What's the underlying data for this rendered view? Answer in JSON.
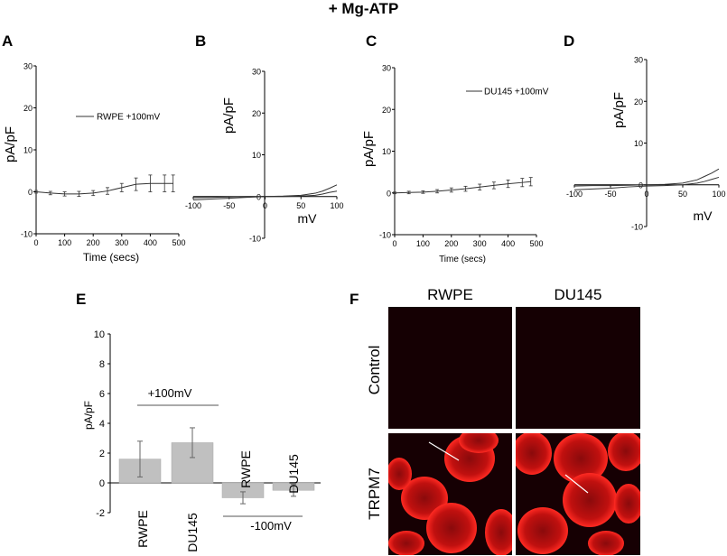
{
  "figure_title": "+ Mg-ATP",
  "panel_letters": {
    "A": "A",
    "B": "B",
    "C": "C",
    "D": "D",
    "E": "E",
    "F": "F"
  },
  "chart_data": [
    {
      "panel": "A",
      "type": "line",
      "xlabel": "Time (secs)",
      "ylabel": "pA/pF",
      "legend": [
        "RWPE +100mV"
      ],
      "xlim": [
        0,
        500
      ],
      "ylim": [
        -10,
        30
      ],
      "xticks": [
        "0",
        "100",
        "200",
        "300",
        "400",
        "500"
      ],
      "yticks": [
        "-10",
        "0",
        "10",
        "20",
        "30"
      ],
      "series": [
        {
          "name": "RWPE +100mV",
          "x": [
            0,
            50,
            100,
            150,
            200,
            250,
            300,
            350,
            400,
            450,
            480
          ],
          "y": [
            0,
            -0.3,
            -0.5,
            -0.5,
            -0.3,
            0.2,
            1.0,
            1.8,
            2.0,
            2.0,
            2.0
          ],
          "err": [
            0.3,
            0.4,
            0.5,
            0.6,
            0.6,
            0.8,
            1.0,
            1.5,
            2.0,
            2.0,
            2.0
          ]
        }
      ]
    },
    {
      "panel": "B",
      "type": "line",
      "xlabel": "mV",
      "ylabel": "pA/pF",
      "xlim": [
        -100,
        100
      ],
      "ylim": [
        -10,
        30
      ],
      "xticks": [
        "-100",
        "-50",
        "0",
        "50",
        "100"
      ],
      "yticks": [
        "-10",
        "0",
        "10",
        "20",
        "30"
      ],
      "series": [
        {
          "x": [
            -100,
            -75,
            -50,
            -25,
            0,
            25,
            50,
            70,
            80,
            90,
            100
          ],
          "y": [
            -0.3,
            -0.2,
            -0.1,
            0,
            0,
            0.1,
            0.3,
            0.8,
            1.3,
            2.0,
            2.8
          ]
        },
        {
          "x": [
            -100,
            -75,
            -50,
            -25,
            0,
            25,
            50,
            70,
            80,
            90,
            100
          ],
          "y": [
            -0.8,
            -0.6,
            -0.4,
            -0.2,
            0,
            0,
            0.1,
            0.3,
            0.6,
            1.0,
            1.3
          ]
        }
      ]
    },
    {
      "panel": "C",
      "type": "line",
      "xlabel": "Time (secs)",
      "ylabel": "pA/pF",
      "legend": [
        "DU145 +100mV"
      ],
      "xlim": [
        0,
        500
      ],
      "ylim": [
        -10,
        30
      ],
      "xticks": [
        "0",
        "100",
        "200",
        "300",
        "400",
        "500"
      ],
      "yticks": [
        "-10",
        "0",
        "10",
        "20",
        "30"
      ],
      "series": [
        {
          "name": "DU145 +100mV",
          "x": [
            0,
            50,
            100,
            150,
            200,
            250,
            300,
            350,
            400,
            450,
            480
          ],
          "y": [
            0,
            0.1,
            0.2,
            0.4,
            0.7,
            1.0,
            1.4,
            1.8,
            2.2,
            2.5,
            2.7
          ],
          "err": [
            0.2,
            0.3,
            0.3,
            0.4,
            0.5,
            0.6,
            0.7,
            0.8,
            0.9,
            1.0,
            1.0
          ]
        }
      ]
    },
    {
      "panel": "D",
      "type": "line",
      "xlabel": "mV",
      "ylabel": "pA/pF",
      "xlim": [
        -100,
        100
      ],
      "ylim": [
        -10,
        30
      ],
      "xticks": [
        "-100",
        "-50",
        "0",
        "50",
        "100"
      ],
      "yticks": [
        "-10",
        "0",
        "10",
        "20",
        "30"
      ],
      "series": [
        {
          "x": [
            -100,
            -75,
            -50,
            -25,
            0,
            25,
            50,
            70,
            80,
            90,
            100
          ],
          "y": [
            -0.3,
            -0.2,
            -0.2,
            -0.1,
            0,
            0.1,
            0.4,
            1.2,
            2.0,
            2.8,
            3.8
          ]
        },
        {
          "x": [
            -100,
            -75,
            -50,
            -25,
            0,
            25,
            50,
            70,
            80,
            90,
            100
          ],
          "y": [
            -1.2,
            -1.0,
            -0.8,
            -0.5,
            -0.3,
            -0.2,
            0,
            0.4,
            0.8,
            1.3,
            1.8
          ]
        }
      ]
    },
    {
      "panel": "E",
      "type": "bar",
      "ylabel": "pA/pF",
      "ylim": [
        -2,
        10
      ],
      "yticks": [
        "-2",
        "0",
        "2",
        "4",
        "6",
        "8",
        "10"
      ],
      "categories": [
        "RWPE",
        "DU145",
        "RWPE",
        "DU145"
      ],
      "values": [
        1.6,
        2.7,
        -1.0,
        -0.5
      ],
      "errors": [
        1.2,
        1.0,
        0.4,
        0.4
      ],
      "group_labels": [
        "+100mV",
        "-100mV"
      ]
    }
  ],
  "micrographs": {
    "column_headers": [
      "RWPE",
      "DU145"
    ],
    "row_labels": [
      "Control",
      "TRPM7"
    ],
    "colors": {
      "background": "#160003",
      "cell_fill": "#b80e10",
      "cell_edge": "#ff2a24"
    }
  },
  "colors": {
    "bar_fill": "#c0c0c0",
    "axis": "#000000",
    "trace": "#333333"
  }
}
